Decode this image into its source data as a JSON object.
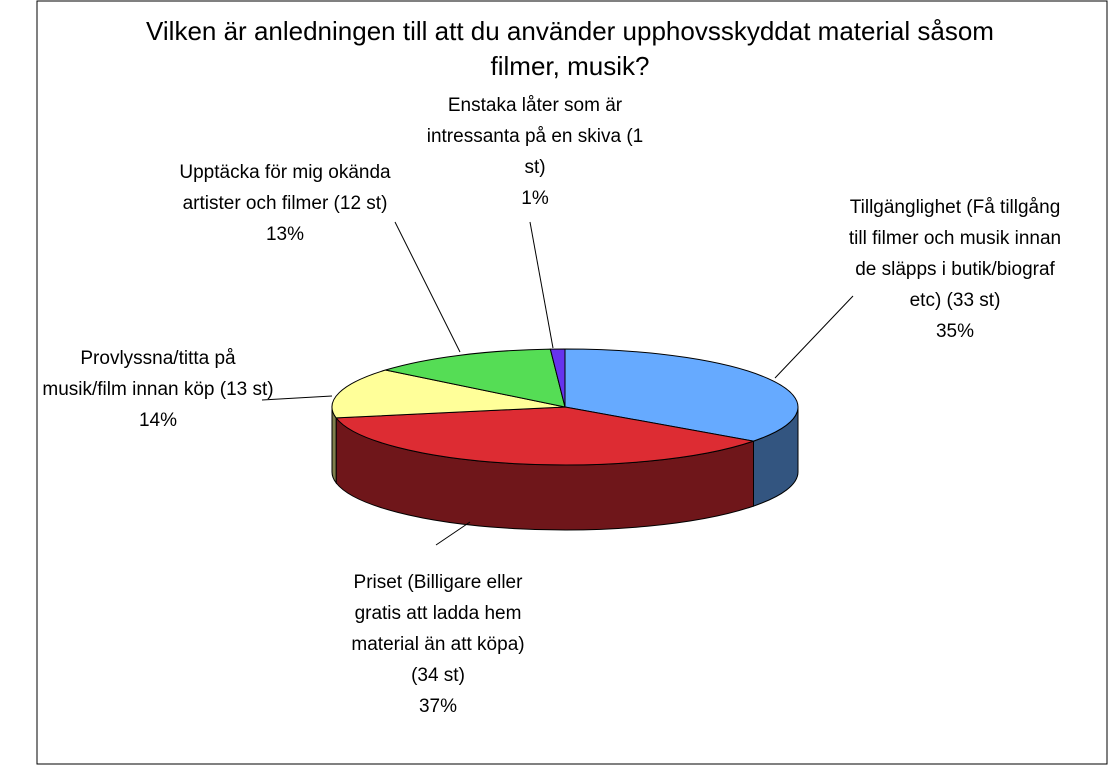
{
  "chart_data": {
    "type": "pie",
    "title": "Vilken är anledningen till att du använder upphovsskyddat material såsom filmer, musik?",
    "categories": [
      "Tillgänglighet (Få tillgång till filmer och musik innan de släpps i butik/biograf etc) (33 st)",
      "Priset (Billigare eller gratis att ladda hem material än att köpa) (34 st)",
      "Provlyssna/titta på musik/film innan köp (13 st)",
      "Upptäcka för mig okända artister och filmer (12 st)",
      "Enstaka låter som är intressanta på en skiva (1 st)"
    ],
    "values": [
      35,
      37,
      14,
      13,
      1
    ],
    "value_labels": [
      "35%",
      "37%",
      "14%",
      "13%",
      "1%"
    ],
    "colors": [
      "#66aaff",
      "#dd2c33",
      "#ffff99",
      "#55dd55",
      "#6633ee"
    ]
  }
}
